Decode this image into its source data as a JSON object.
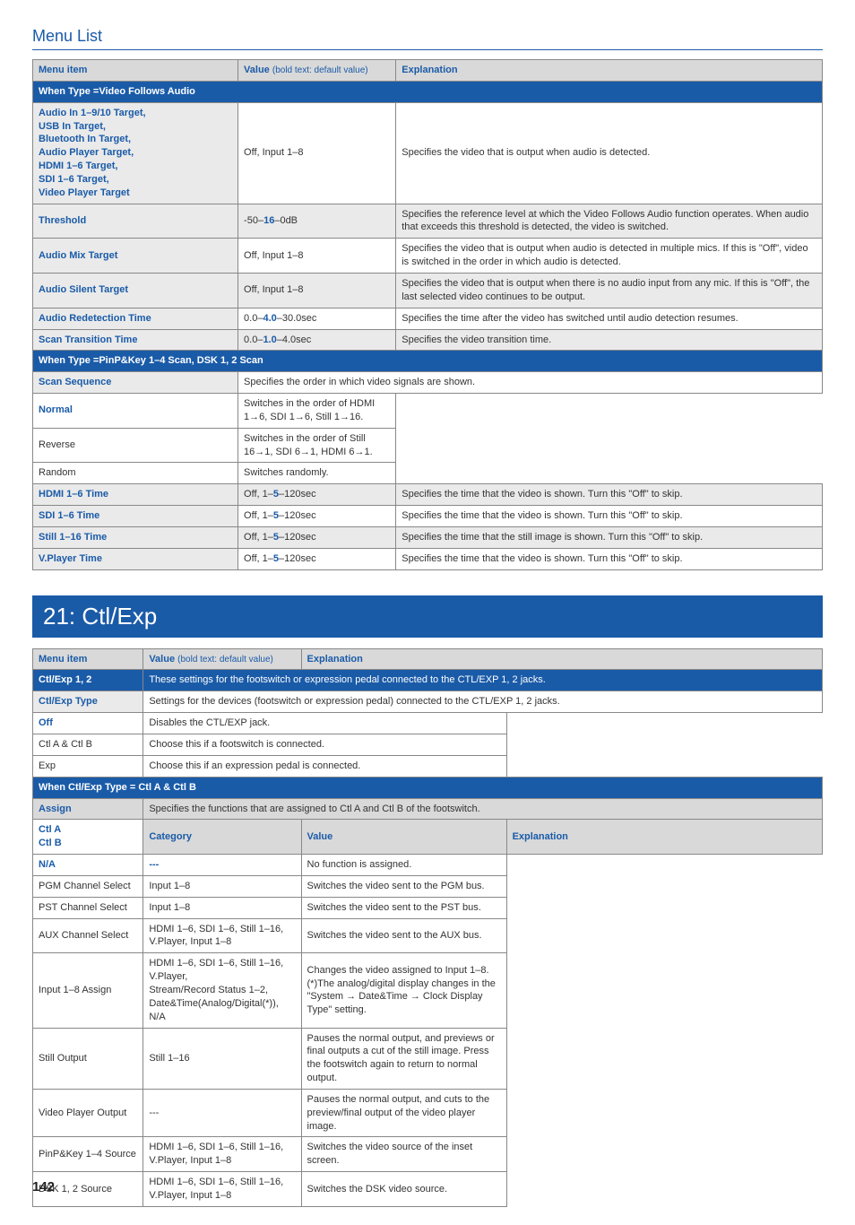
{
  "header": {
    "title": "Menu List"
  },
  "table1": {
    "headers": {
      "menu": "Menu item",
      "value": "Value",
      "valueSub": "(bold text: default value)",
      "exp": "Explanation"
    },
    "section1": "When Type =Video Follows Audio",
    "rows1": [
      {
        "item": "Audio In 1–9/10 Target,\nUSB In Target,\nBluetooth In Target,\nAudio Player Target,\nHDMI 1–6 Target,\nSDI 1–6 Target,\nVideo Player Target",
        "value": "Off, Input 1–8",
        "exp": "Specifies the video that is output when audio is detected."
      },
      {
        "item": "Threshold",
        "valuePre": "-50–",
        "valueDV": "16",
        "valuePost": "–0dB",
        "exp": "Specifies the reference level at which the Video Follows Audio function operates. When audio that exceeds this threshold is detected, the video is switched.",
        "zebra": true
      },
      {
        "item": "Audio Mix Target",
        "value": "Off, Input 1–8",
        "exp": "Specifies the video that is output when audio is detected in multiple mics. If this is \"Off\", video is switched in the order in which audio is detected."
      },
      {
        "item": "Audio Silent Target",
        "value": "Off, Input 1–8",
        "exp": "Specifies the video that is output when there is no audio input from any mic. If this is \"Off\", the last selected video continues to be output.",
        "zebra": true
      },
      {
        "item": "Audio Redetection Time",
        "valuePre": "0.0–",
        "valueDV": "4.0",
        "valuePost": "–30.0sec",
        "exp": "Specifies the time after the video has switched until audio detection resumes."
      },
      {
        "item": "Scan Transition Time",
        "valuePre": "0.0–",
        "valueDV": "1.0",
        "valuePost": "–4.0sec",
        "exp": "Specifies the video transition time.",
        "zebra": true
      }
    ],
    "section2": "When Type =PinP&Key 1–4 Scan, DSK 1, 2 Scan",
    "scan": {
      "item": "Scan Sequence",
      "span": "Specifies the order in which video signals are shown.",
      "rows": [
        {
          "v": "Normal",
          "blue": true,
          "exp": "Switches in the order of HDMI 1→6, SDI 1→6, Still 1→16."
        },
        {
          "v": "Reverse",
          "blue": false,
          "exp": "Switches in the order of Still 16→1, SDI 6→1, HDMI 6→1."
        },
        {
          "v": "Random",
          "blue": false,
          "exp": "Switches randomly."
        }
      ]
    },
    "rows2": [
      {
        "item": "HDMI 1–6 Time",
        "valuePre": "Off, 1–",
        "valueDV": "5",
        "valuePost": "–120sec",
        "exp": "Specifies the time that the video is shown. Turn this \"Off\" to skip.",
        "zebra": true
      },
      {
        "item": "SDI 1–6 Time",
        "valuePre": "Off, 1–",
        "valueDV": "5",
        "valuePost": "–120sec",
        "exp": "Specifies the time that the video is shown. Turn this \"Off\" to skip."
      },
      {
        "item": "Still 1–16 Time",
        "valuePre": "Off, 1–",
        "valueDV": "5",
        "valuePost": "–120sec",
        "exp": "Specifies the time that the still image is shown. Turn this \"Off\" to skip.",
        "zebra": true
      },
      {
        "item": "V.Player Time",
        "valuePre": "Off, 1–",
        "valueDV": "5",
        "valuePost": "–120sec",
        "exp": "Specifies the time that the video is shown. Turn this \"Off\" to skip."
      }
    ]
  },
  "bigSection": "21: Ctl/Exp",
  "table2": {
    "headers": {
      "menu": "Menu item",
      "value": "Value",
      "valueSub": "(bold text: default value)",
      "exp": "Explanation"
    },
    "ctlExp12": {
      "item": "Ctl/Exp 1, 2",
      "exp": "These settings for the footswitch or expression pedal connected to the CTL/EXP 1, 2 jacks."
    },
    "ctlType": {
      "item": "Ctl/Exp Type",
      "span": "Settings for the devices (footswitch or expression pedal) connected to the CTL/EXP 1, 2 jacks.",
      "rows": [
        {
          "v": "Off",
          "blue": true,
          "exp": "Disables the CTL/EXP jack."
        },
        {
          "v": "Ctl A & Ctl B",
          "blue": false,
          "exp": "Choose this if a footswitch is connected."
        },
        {
          "v": "Exp",
          "blue": false,
          "exp": "Choose this if an expression pedal is connected."
        }
      ]
    },
    "whenType": "When Ctl/Exp Type = Ctl A & Ctl B",
    "assign": {
      "item": "Assign",
      "exp": "Specifies the functions that are assigned to Ctl A and Ctl B of the footswitch."
    },
    "catHdr": {
      "cat": "Category",
      "val": "Value",
      "exp": "Explanation"
    },
    "ctlAB": {
      "item": "Ctl A\nCtl B",
      "rows": [
        {
          "cat": "N/A",
          "catBlue": true,
          "val": "---",
          "valBlue": true,
          "exp": "No function is assigned."
        },
        {
          "cat": "PGM Channel Select",
          "val": "Input 1–8",
          "exp": "Switches the video sent to the PGM bus."
        },
        {
          "cat": "PST Channel Select",
          "val": "Input 1–8",
          "exp": "Switches the video sent to the PST bus."
        },
        {
          "cat": "AUX Channel Select",
          "val": "HDMI 1–6, SDI 1–6, Still 1–16, V.Player, Input 1–8",
          "exp": "Switches the video sent to the AUX bus."
        },
        {
          "cat": "Input 1–8 Assign",
          "val": "HDMI 1–6, SDI 1–6, Still 1–16, V.Player,\nStream/Record Status 1–2, Date&Time(Analog/Digital(*)), N/A",
          "exp": "Changes the video assigned to Input 1–8.\n(*)The analog/digital display changes in the \"System → Date&Time → Clock Display Type\" setting."
        },
        {
          "cat": "Still Output",
          "val": "Still 1–16",
          "exp": "Pauses the normal output, and previews or final outputs a cut of the still image. Press the footswitch again to return to normal output."
        },
        {
          "cat": "Video Player Output",
          "val": "---",
          "exp": "Pauses the normal output, and cuts to the preview/final output of the video player image."
        },
        {
          "cat": "PinP&Key 1–4 Source",
          "val": "HDMI 1–6, SDI 1–6, Still 1–16, V.Player, Input 1–8",
          "exp": "Switches the video source of the inset screen."
        },
        {
          "cat": "DSK 1, 2 Source",
          "val": "HDMI 1–6, SDI 1–6, Still 1–16, V.Player, Input 1–8",
          "exp": "Switches the DSK video source."
        }
      ]
    }
  },
  "pageNum": "142"
}
